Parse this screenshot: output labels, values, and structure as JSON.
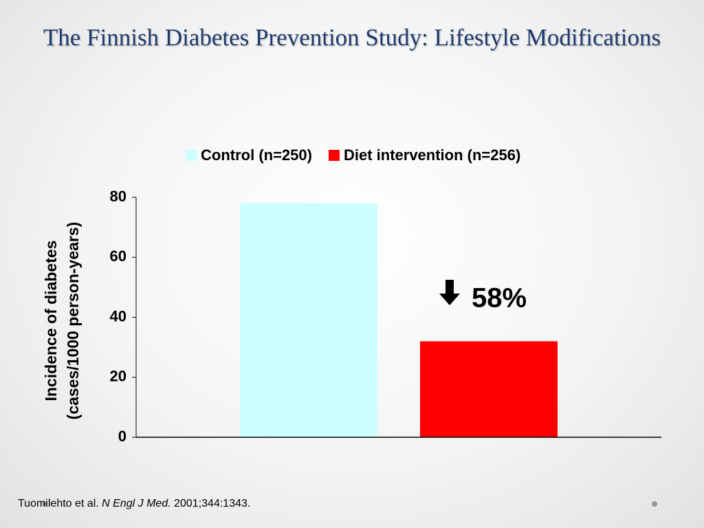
{
  "title": "The Finnish Diabetes Prevention Study: Lifestyle Modifications",
  "chart_data": {
    "type": "bar",
    "categories": [
      null
    ],
    "series": [
      {
        "name": "Control (n=250)",
        "color": "#ccffff",
        "values": [
          78
        ]
      },
      {
        "name": "Diet intervention (n=256)",
        "color": "#ff0000",
        "values": [
          32
        ]
      }
    ],
    "ylabel": [
      "Incidence of diabetes",
      "(cases/1000 person-years)"
    ],
    "ylim": [
      0,
      80
    ],
    "yticks": [
      0,
      20,
      40,
      60,
      80
    ],
    "annotation": "58%"
  },
  "citation": {
    "authors": "Tuomilehto et al.",
    "journal": "N Engl J Med.",
    "details": "2001;344:1343."
  }
}
